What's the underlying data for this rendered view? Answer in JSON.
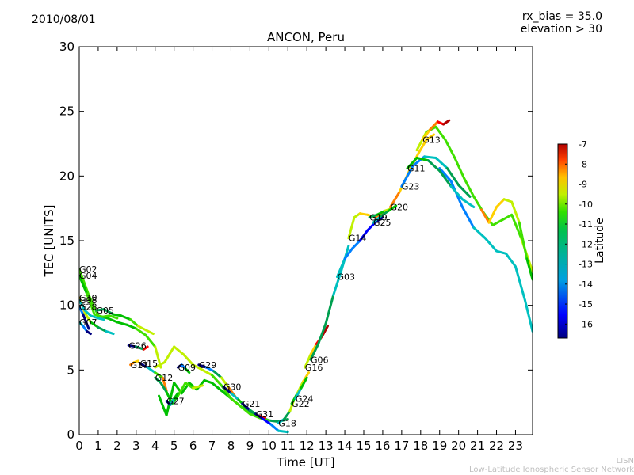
{
  "header": {
    "date": "2010/08/01",
    "rx_bias": "rx_bias = 35.0",
    "elevation": "elevation > 30"
  },
  "footer": {
    "line1": "LISN",
    "line2": "Low-Latitude Ionospheric Sensor Network"
  },
  "colors": {
    "scale": [
      "#00007f",
      "#0000ff",
      "#0080ff",
      "#00c0c0",
      "#00a050",
      "#00c000",
      "#40e000",
      "#c0f000",
      "#ffd000",
      "#ff7f00",
      "#ff0000",
      "#b00000"
    ]
  },
  "chart_data": {
    "type": "line",
    "title": "ANCON, Peru",
    "xlabel": "Time [UT]",
    "ylabel": "TEC [UNITS]",
    "xlim": [
      0,
      23.9
    ],
    "ylim": [
      0,
      30
    ],
    "xticks": [
      0,
      1,
      2,
      3,
      4,
      5,
      6,
      7,
      8,
      9,
      10,
      11,
      12,
      13,
      14,
      15,
      16,
      17,
      18,
      19,
      20,
      21,
      22,
      23
    ],
    "yticks": [
      0,
      5,
      10,
      15,
      20,
      25,
      30
    ],
    "colorbar": {
      "label": "Latitude",
      "min": -16.7,
      "max": -7,
      "ticks": [
        -7,
        -8,
        -9,
        -10,
        -11,
        -12,
        -13,
        -14,
        -15,
        -16
      ]
    },
    "series": [
      {
        "name": "G02",
        "lat": [
          -11.5,
          -12.5,
          -11
        ],
        "x": [
          0,
          0.5,
          1,
          1.5,
          2,
          2.5,
          3,
          3.5,
          4,
          4.3
        ],
        "y": [
          12.8,
          10.8,
          9.2,
          9.0,
          8.7,
          8.5,
          8.2,
          7.7,
          6.8,
          5.2
        ]
      },
      {
        "name": "G04",
        "lat": [
          -12,
          -11.5,
          -11.5
        ],
        "x": [
          0,
          0.4,
          0.8,
          1.2,
          1.6,
          2.0
        ],
        "y": [
          12.3,
          10.9,
          9.3,
          9.1,
          9.2,
          9.0
        ]
      },
      {
        "name": "G10",
        "lat": [
          -10,
          -12,
          -14
        ],
        "x": [
          0,
          0.3,
          0.6,
          1.0,
          1.4,
          1.8
        ],
        "y": [
          10.6,
          9.4,
          8.7,
          8.3,
          8.0,
          7.8
        ]
      },
      {
        "name": "G08",
        "lat": [
          -13.5,
          -14,
          -14
        ],
        "x": [
          0,
          0.3,
          0.6,
          1.0,
          1.3
        ],
        "y": [
          10.4,
          9.6,
          9.2,
          9.0,
          8.9
        ]
      },
      {
        "name": "G28",
        "lat": [
          -14.5,
          -15,
          -16
        ],
        "x": [
          0,
          0.2,
          0.5
        ],
        "y": [
          9.9,
          9.3,
          8.2
        ]
      },
      {
        "name": "G05",
        "lat": [
          -13,
          -12,
          -10.5
        ],
        "x": [
          0.9,
          1.3,
          1.8,
          2.2,
          2.7,
          3.1,
          3.5,
          3.9
        ],
        "y": [
          9.6,
          9.7,
          9.3,
          9.2,
          8.9,
          8.4,
          8.1,
          7.8
        ]
      },
      {
        "name": "G07",
        "lat": [
          -14,
          -15,
          -16.5
        ],
        "x": [
          0,
          0.2,
          0.4,
          0.6
        ],
        "y": [
          8.7,
          8.4,
          8.0,
          7.8
        ]
      },
      {
        "name": "G26",
        "lat": [
          -16,
          -13,
          -8
        ],
        "x": [
          2.6,
          3.0,
          3.4,
          3.6
        ],
        "y": [
          6.9,
          6.8,
          6.6,
          6.8
        ]
      },
      {
        "name": "G17",
        "lat": [
          -9,
          -10,
          -10
        ],
        "x": [
          2.7,
          2.9,
          3.1
        ],
        "y": [
          5.4,
          5.6,
          5.7
        ]
      },
      {
        "name": "G15",
        "lat": [
          -16,
          -13,
          -9
        ],
        "x": [
          3.2,
          3.6,
          4.0,
          4.4,
          4.6
        ],
        "y": [
          5.5,
          5.2,
          4.8,
          4.4,
          3.4
        ]
      },
      {
        "name": "G12",
        "lat": [
          -13,
          -12,
          -11
        ],
        "x": [
          4.0,
          4.3,
          4.6,
          4.9,
          5.2,
          5.6,
          6.0,
          6.5
        ],
        "y": [
          4.4,
          4.0,
          3.3,
          2.4,
          3.0,
          4.0,
          3.6,
          3.8
        ]
      },
      {
        "name": "G09",
        "lat": [
          -16.5,
          -15,
          -12
        ],
        "x": [
          5.2,
          5.4,
          5.6,
          5.8
        ],
        "y": [
          5.2,
          5.4,
          5.1,
          4.8
        ]
      },
      {
        "name": "G29",
        "lat": [
          -16,
          -13,
          -9
        ],
        "x": [
          6.3,
          6.7,
          7.1,
          7.5,
          7.9,
          8.3
        ],
        "y": [
          5.4,
          5.2,
          4.9,
          4.4,
          3.6,
          2.8
        ]
      },
      {
        "name": "G27",
        "lat": [
          -16,
          -14,
          -12
        ],
        "x": [
          4.6,
          4.8,
          5.0,
          5.2
        ],
        "y": [
          2.6,
          2.3,
          2.8,
          3.2
        ]
      },
      {
        "name": "G30",
        "lat": [
          -16.5,
          -14,
          -12
        ],
        "x": [
          7.6,
          8.0,
          8.4,
          8.8
        ],
        "y": [
          3.7,
          3.2,
          2.7,
          2.1
        ]
      },
      {
        "name": "G21",
        "lat": [
          -16,
          -13,
          -8
        ],
        "x": [
          8.6,
          9.0,
          9.4,
          9.8
        ],
        "y": [
          2.4,
          1.9,
          1.5,
          1.3
        ]
      },
      {
        "name": "G31",
        "lat": [
          -16.5,
          -15,
          -14
        ],
        "x": [
          9.3,
          9.7,
          10.1,
          10.5,
          11.0
        ],
        "y": [
          1.6,
          1.2,
          0.8,
          0.3,
          0.2
        ]
      },
      {
        "name": "G18",
        "lat": [
          -14,
          -13,
          -11
        ],
        "x": [
          10.5,
          10.8,
          11.1,
          11.3
        ],
        "y": [
          0.9,
          1.2,
          1.8,
          2.6
        ]
      },
      {
        "name": "G22",
        "lat": [
          -12,
          -11,
          -10
        ],
        "x": [
          11.2,
          11.5,
          11.8,
          12.1
        ],
        "y": [
          2.4,
          3.2,
          4.1,
          4.8
        ]
      },
      {
        "name": "G24",
        "lat": [
          -14,
          -13,
          -12
        ],
        "x": [
          11.4,
          11.7,
          12.0
        ],
        "y": [
          2.8,
          3.6,
          4.4
        ]
      },
      {
        "name": "G16",
        "lat": [
          -11,
          -9,
          -7.5
        ],
        "x": [
          11.9,
          12.2,
          12.5,
          12.8,
          13.1
        ],
        "y": [
          5.2,
          6.2,
          7.0,
          7.6,
          8.4
        ]
      },
      {
        "name": "G06",
        "lat": [
          -13,
          -13,
          -14
        ],
        "x": [
          12.2,
          12.6,
          13.0,
          13.4,
          13.8,
          14.2
        ],
        "y": [
          5.8,
          7.0,
          8.6,
          10.8,
          12.6,
          14.6
        ]
      },
      {
        "name": "G03",
        "lat": [
          -14,
          -15,
          -16
        ],
        "x": [
          13.6,
          14.0,
          14.4,
          14.8,
          15.2,
          15.6,
          16.0
        ],
        "y": [
          12.2,
          13.6,
          14.4,
          15.0,
          15.8,
          16.4,
          16.8
        ]
      },
      {
        "name": "G14",
        "lat": [
          -11,
          -10,
          -9
        ],
        "x": [
          14.2,
          14.5,
          14.8,
          15.2,
          15.6,
          16.0
        ],
        "y": [
          15.2,
          16.8,
          17.1,
          17.0,
          16.8,
          17.2
        ]
      },
      {
        "name": "G19",
        "lat": [
          -13,
          -12,
          -11
        ],
        "x": [
          15.3,
          15.7,
          16.1,
          16.5
        ],
        "y": [
          16.8,
          17.0,
          17.3,
          17.5
        ]
      },
      {
        "name": "G25",
        "lat": [
          -14,
          -13,
          -12
        ],
        "x": [
          15.5,
          15.9,
          16.3,
          16.7
        ],
        "y": [
          16.4,
          16.9,
          17.3,
          17.7
        ]
      },
      {
        "name": "G20",
        "lat": [
          -9,
          -10,
          -10
        ],
        "x": [
          16.4,
          16.9,
          17.4,
          17.9,
          18.3,
          18.7
        ],
        "y": [
          17.6,
          18.8,
          20.4,
          21.8,
          22.8,
          23.2
        ]
      },
      {
        "name": "G23",
        "lat": [
          -15,
          -14,
          -13
        ],
        "x": [
          17.0,
          17.6,
          18.2,
          18.8,
          19.4,
          20.0,
          20.6
        ],
        "y": [
          19.2,
          20.8,
          21.5,
          21.4,
          20.6,
          19.3,
          18.4
        ]
      },
      {
        "name": "G11",
        "lat": [
          -12,
          -13,
          -14
        ],
        "x": [
          17.3,
          17.8,
          18.4,
          19.0,
          19.6,
          20.2,
          20.8
        ],
        "y": [
          20.6,
          21.4,
          21.2,
          20.4,
          19.2,
          18.2,
          17.6
        ]
      },
      {
        "name": "G13",
        "lat": [
          -10,
          -9,
          -7.5
        ],
        "x": [
          18.1,
          18.5,
          18.9,
          19.2,
          19.5
        ],
        "y": [
          22.8,
          23.6,
          24.2,
          24.0,
          24.3
        ]
      }
    ],
    "traces": [
      {
        "lat": [
          -11,
          -11.5,
          -11
        ],
        "x": [
          17.8,
          18.3,
          18.8,
          19.3,
          19.8,
          20.3,
          20.8,
          21.3,
          21.8,
          22.3,
          22.8,
          23.3,
          23.9
        ],
        "y": [
          22.0,
          23.4,
          23.8,
          22.8,
          21.4,
          19.8,
          18.4,
          17.2,
          16.2,
          16.6,
          17.0,
          15.2,
          12.6
        ]
      },
      {
        "lat": [
          -15,
          -14,
          -13.5
        ],
        "x": [
          19.0,
          19.6,
          20.2,
          20.8,
          21.4,
          22.0,
          22.5,
          23.0,
          23.5,
          23.9
        ],
        "y": [
          20.6,
          19.6,
          17.6,
          16.0,
          15.2,
          14.2,
          14.0,
          13.0,
          10.4,
          8.0
        ]
      },
      {
        "lat": [
          -9,
          -10.5,
          -12
        ],
        "x": [
          21.2,
          21.6,
          22.0,
          22.4,
          22.8,
          23.2,
          23.6,
          23.9
        ],
        "y": [
          17.4,
          16.4,
          17.6,
          18.2,
          18.0,
          16.4,
          13.6,
          12.0
        ]
      },
      {
        "lat": [
          -12,
          -12.5,
          -13
        ],
        "x": [
          4.2,
          4.6,
          5.0,
          5.4,
          5.8,
          6.2,
          6.6,
          7.0,
          7.5,
          8.0,
          8.5,
          9.0,
          9.5,
          10.0,
          10.5,
          11.0
        ],
        "y": [
          3.0,
          1.5,
          4.0,
          3.2,
          4.0,
          3.5,
          4.2,
          4.0,
          3.4,
          2.8,
          2.2,
          1.8,
          1.4,
          1.1,
          1.0,
          1.2
        ]
      },
      {
        "lat": [
          -10.5,
          -11,
          -11.5
        ],
        "x": [
          4.0,
          4.5,
          5.0,
          5.5,
          6.0,
          6.5,
          7.0,
          7.5,
          8.0,
          8.5,
          9.0,
          9.5,
          10.0
        ],
        "y": [
          5.2,
          5.6,
          6.8,
          6.2,
          5.4,
          5.0,
          4.6,
          3.8,
          2.8,
          2.2,
          1.6,
          1.3,
          1.1
        ]
      }
    ]
  }
}
